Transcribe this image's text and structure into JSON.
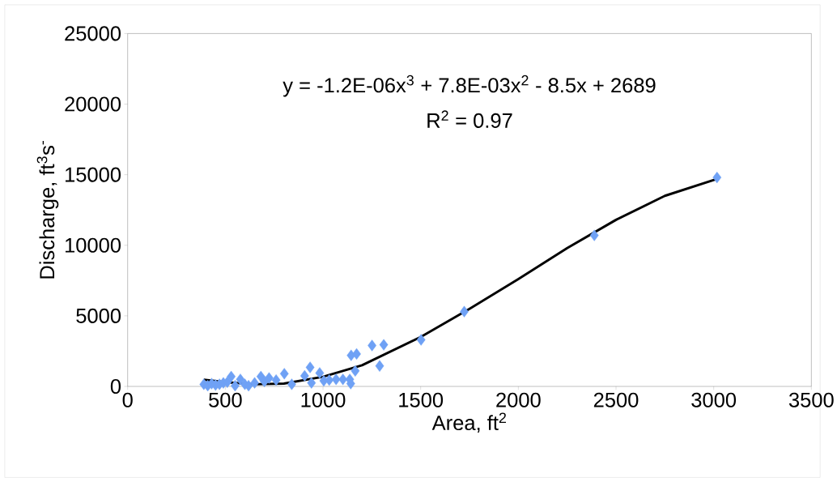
{
  "chart_data": {
    "type": "scatter",
    "xlabel": "Area, ft$^{2}$",
    "ylabel": "Discharge, ft$^{3}$s$^{-}$",
    "xlim": [
      0,
      3500
    ],
    "ylim": [
      0,
      25000
    ],
    "xticks": [
      0,
      500,
      1000,
      1500,
      2000,
      2500,
      3000,
      3500
    ],
    "yticks": [
      0,
      5000,
      10000,
      15000,
      20000,
      25000
    ],
    "marker": "diamond",
    "series": [
      {
        "color": "#6fa1f5",
        "x": [
          390,
          410,
          430,
          450,
          470,
          490,
          510,
          530,
          550,
          577,
          600,
          619,
          650,
          682,
          700,
          724,
          760,
          802,
          840,
          906,
          934,
          941,
          983,
          1004,
          1032,
          1067,
          1102,
          1137,
          1142,
          1144,
          1165,
          1172,
          1251,
          1290,
          1311,
          1502,
          1723,
          2389,
          3017
        ],
        "values": [
          150,
          50,
          200,
          100,
          150,
          250,
          300,
          700,
          50,
          500,
          150,
          50,
          250,
          700,
          350,
          600,
          450,
          900,
          150,
          750,
          1350,
          250,
          950,
          400,
          450,
          500,
          500,
          500,
          200,
          2200,
          1100,
          2300,
          2900,
          1450,
          2950,
          3300,
          5300,
          10700,
          14800
        ]
      },
      {
        "type": "line",
        "color": "#000000",
        "marker": "none",
        "x": [
          390,
          500,
          650,
          800,
          1000,
          1200,
          1500,
          1750,
          2000,
          2250,
          2500,
          2750,
          3017
        ],
        "values": [
          480,
          300,
          150,
          200,
          680,
          1500,
          3500,
          5500,
          7600,
          9800,
          11800,
          13500,
          14700
        ]
      }
    ],
    "annotations": [
      "y = -1.2E-06x$^{3}$ + 7.8E-03x$^{2}$ - 8.5x + 2689",
      "R$^{2}$ = 0.97"
    ]
  }
}
